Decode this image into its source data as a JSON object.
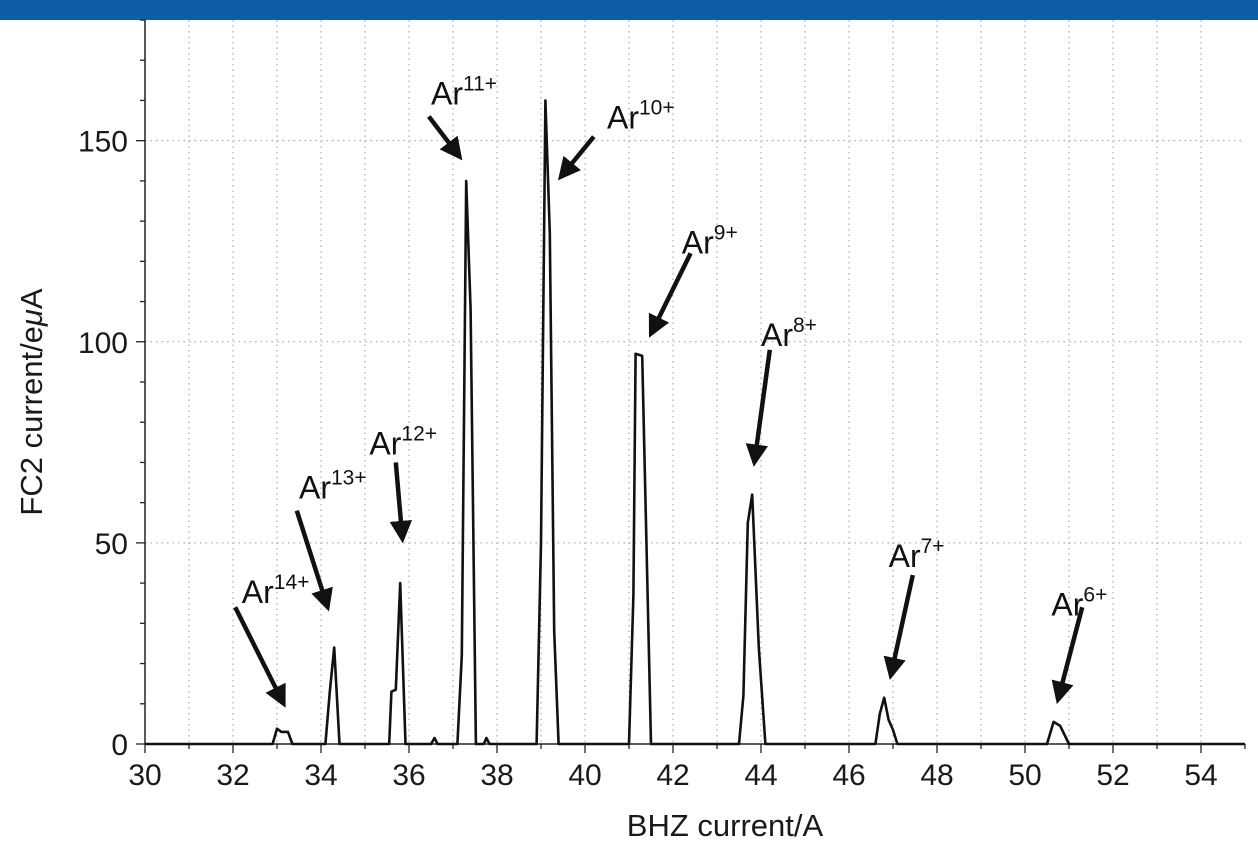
{
  "chart_data": {
    "type": "line",
    "title": "",
    "xlabel": "BHZ current/A",
    "ylabel_parts": [
      "FC2 current/e",
      "μ",
      "A"
    ],
    "xlim": [
      30,
      55
    ],
    "ylim": [
      0,
      180
    ],
    "x_ticks": [
      30,
      32,
      34,
      36,
      38,
      40,
      42,
      44,
      46,
      48,
      50,
      52,
      54
    ],
    "y_ticks": [
      0,
      50,
      100,
      150
    ],
    "grid": true,
    "series": [
      {
        "points": [
          [
            30,
            0
          ],
          [
            32.9,
            0
          ],
          [
            33.0,
            3.8
          ],
          [
            33.1,
            3.0
          ],
          [
            33.25,
            3.0
          ],
          [
            33.35,
            0
          ],
          [
            34.1,
            0
          ],
          [
            34.2,
            13
          ],
          [
            34.3,
            24
          ],
          [
            34.42,
            0
          ],
          [
            35.55,
            0
          ],
          [
            35.6,
            13
          ],
          [
            35.7,
            13.5
          ],
          [
            35.8,
            40
          ],
          [
            35.92,
            0
          ],
          [
            36.5,
            0
          ],
          [
            36.58,
            1.5
          ],
          [
            36.65,
            0
          ],
          [
            37.1,
            0
          ],
          [
            37.2,
            22
          ],
          [
            37.3,
            140
          ],
          [
            37.4,
            108
          ],
          [
            37.52,
            0
          ],
          [
            37.7,
            0
          ],
          [
            37.76,
            1.5
          ],
          [
            37.83,
            0
          ],
          [
            38.9,
            0
          ],
          [
            39.0,
            50
          ],
          [
            39.1,
            160
          ],
          [
            39.2,
            127
          ],
          [
            39.3,
            28
          ],
          [
            39.4,
            0
          ],
          [
            41.0,
            0
          ],
          [
            41.1,
            37
          ],
          [
            41.15,
            97
          ],
          [
            41.3,
            96.5
          ],
          [
            41.5,
            0
          ],
          [
            43.5,
            0
          ],
          [
            43.6,
            12
          ],
          [
            43.7,
            55
          ],
          [
            43.8,
            62
          ],
          [
            43.95,
            24
          ],
          [
            44.1,
            0
          ],
          [
            46.6,
            0
          ],
          [
            46.7,
            7.5
          ],
          [
            46.8,
            11.5
          ],
          [
            46.9,
            6
          ],
          [
            47.0,
            3.5
          ],
          [
            47.1,
            0
          ],
          [
            50.5,
            0
          ],
          [
            50.65,
            5.5
          ],
          [
            50.8,
            4.5
          ],
          [
            51.0,
            0
          ],
          [
            55,
            0
          ]
        ]
      }
    ],
    "annotations": [
      {
        "base": "Ar",
        "sup": "14+",
        "text_x": 32.2,
        "text_y": 35,
        "arrow_from": [
          32.05,
          34
        ],
        "arrow_to": [
          33.15,
          10
        ]
      },
      {
        "base": "Ar",
        "sup": "13+",
        "text_x": 33.5,
        "text_y": 61,
        "arrow_from": [
          33.45,
          58
        ],
        "arrow_to": [
          34.15,
          34
        ]
      },
      {
        "base": "Ar",
        "sup": "12+",
        "text_x": 35.1,
        "text_y": 72,
        "arrow_from": [
          35.7,
          70
        ],
        "arrow_to": [
          35.85,
          51
        ]
      },
      {
        "base": "Ar",
        "sup": "11+",
        "text_x": 36.5,
        "text_y": 159,
        "arrow_from": [
          36.45,
          156
        ],
        "arrow_to": [
          37.15,
          146
        ]
      },
      {
        "base": "Ar",
        "sup": "10+",
        "text_x": 40.5,
        "text_y": 153,
        "arrow_from": [
          40.2,
          151
        ],
        "arrow_to": [
          39.45,
          141
        ]
      },
      {
        "base": "Ar",
        "sup": "9+",
        "text_x": 42.2,
        "text_y": 122,
        "arrow_from": [
          42.4,
          122
        ],
        "arrow_to": [
          41.5,
          102
        ]
      },
      {
        "base": "Ar",
        "sup": "8+",
        "text_x": 44.0,
        "text_y": 99,
        "arrow_from": [
          44.2,
          98
        ],
        "arrow_to": [
          43.85,
          70
        ]
      },
      {
        "base": "Ar",
        "sup": "7+",
        "text_x": 46.9,
        "text_y": 44,
        "arrow_from": [
          47.45,
          42
        ],
        "arrow_to": [
          46.95,
          17
        ]
      },
      {
        "base": "Ar",
        "sup": "6+",
        "text_x": 50.6,
        "text_y": 32,
        "arrow_from": [
          51.3,
          34
        ],
        "arrow_to": [
          50.75,
          11
        ]
      }
    ],
    "colors": {
      "line": "#111111",
      "grid": "#9a9a9a",
      "header": "#0d5ea6",
      "axis": "#222222"
    }
  }
}
